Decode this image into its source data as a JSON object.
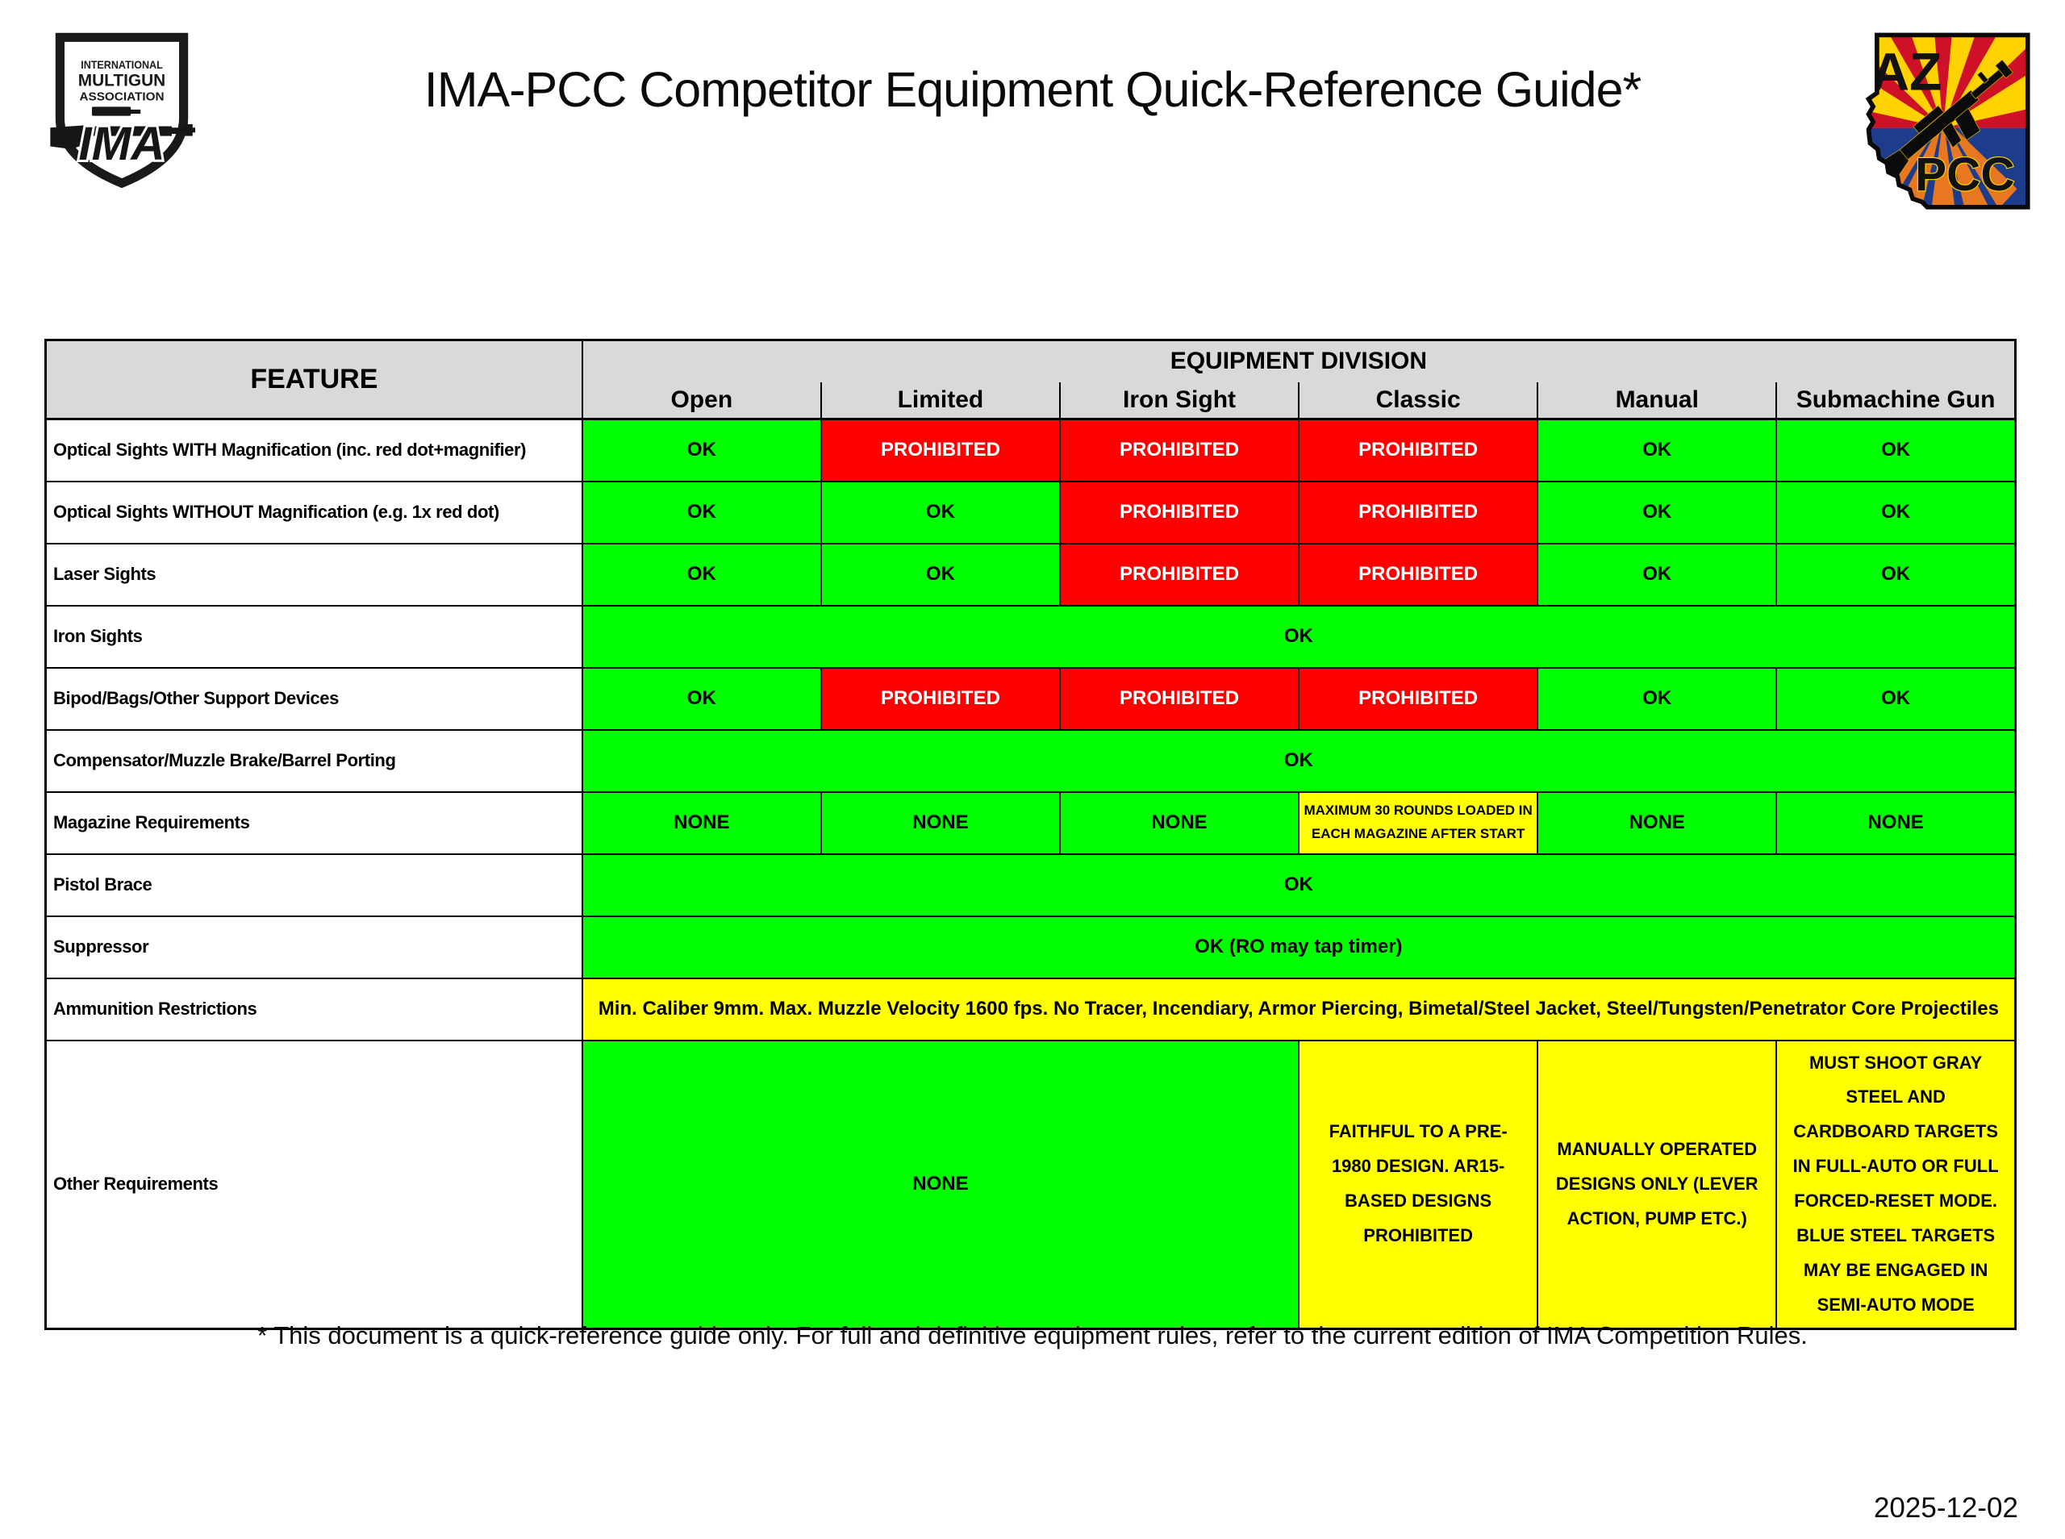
{
  "page": {
    "title": "IMA-PCC Competitor Equipment Quick-Reference Guide*",
    "footnote": "* This document is a quick-reference guide only. For full and definitive equipment rules, refer to the current edition of IMA Competition Rules.",
    "date": "2025-12-02"
  },
  "logos": {
    "ima": {
      "line1": "INTERNATIONAL",
      "line2": "MULTIGUN",
      "line3": "ASSOCIATION",
      "monogram": "IMA"
    },
    "az_pcc": {
      "state": "AZ",
      "org": "PCC"
    }
  },
  "colors": {
    "ok_green": "#00FF00",
    "prohibited_red": "#FF0000",
    "restriction_yellow": "#FFFF00",
    "header_gray": "#D9D9D9"
  },
  "table": {
    "feature_header": "FEATURE",
    "division_header": "EQUIPMENT DIVISION",
    "divisions": [
      "Open",
      "Limited",
      "Iron Sight",
      "Classic",
      "Manual",
      "Submachine Gun"
    ],
    "rows": [
      {
        "feature": "Optical Sights WITH Magnification (inc. red dot+magnifier)",
        "cells": [
          {
            "text": "OK",
            "type": "ok"
          },
          {
            "text": "PROHIBITED",
            "type": "prohibited"
          },
          {
            "text": "PROHIBITED",
            "type": "prohibited"
          },
          {
            "text": "PROHIBITED",
            "type": "prohibited"
          },
          {
            "text": "OK",
            "type": "ok"
          },
          {
            "text": "OK",
            "type": "ok"
          }
        ]
      },
      {
        "feature": "Optical Sights WITHOUT Magnification (e.g. 1x red dot)",
        "cells": [
          {
            "text": "OK",
            "type": "ok"
          },
          {
            "text": "OK",
            "type": "ok"
          },
          {
            "text": "PROHIBITED",
            "type": "prohibited"
          },
          {
            "text": "PROHIBITED",
            "type": "prohibited"
          },
          {
            "text": "OK",
            "type": "ok"
          },
          {
            "text": "OK",
            "type": "ok"
          }
        ]
      },
      {
        "feature": "Laser Sights",
        "cells": [
          {
            "text": "OK",
            "type": "ok"
          },
          {
            "text": "OK",
            "type": "ok"
          },
          {
            "text": "PROHIBITED",
            "type": "prohibited"
          },
          {
            "text": "PROHIBITED",
            "type": "prohibited"
          },
          {
            "text": "OK",
            "type": "ok"
          },
          {
            "text": "OK",
            "type": "ok"
          }
        ]
      },
      {
        "feature": "Iron Sights",
        "cells": [
          {
            "text": "OK",
            "type": "ok",
            "span": 6
          }
        ]
      },
      {
        "feature": "Bipod/Bags/Other Support Devices",
        "cells": [
          {
            "text": "OK",
            "type": "ok"
          },
          {
            "text": "PROHIBITED",
            "type": "prohibited"
          },
          {
            "text": "PROHIBITED",
            "type": "prohibited"
          },
          {
            "text": "PROHIBITED",
            "type": "prohibited"
          },
          {
            "text": "OK",
            "type": "ok"
          },
          {
            "text": "OK",
            "type": "ok"
          }
        ]
      },
      {
        "feature": "Compensator/Muzzle Brake/Barrel Porting",
        "cells": [
          {
            "text": "OK",
            "type": "ok",
            "span": 6
          }
        ]
      },
      {
        "feature": "Magazine Requirements",
        "cells": [
          {
            "text": "NONE",
            "type": "ok"
          },
          {
            "text": "NONE",
            "type": "ok"
          },
          {
            "text": "NONE",
            "type": "ok"
          },
          {
            "text": "MAXIMUM 30 ROUNDS LOADED IN EACH MAGAZINE AFTER START",
            "type": "warning",
            "small": true
          },
          {
            "text": "NONE",
            "type": "ok"
          },
          {
            "text": "NONE",
            "type": "ok"
          }
        ]
      },
      {
        "feature": "Pistol Brace",
        "cells": [
          {
            "text": "OK",
            "type": "ok",
            "span": 6
          }
        ]
      },
      {
        "feature": "Suppressor",
        "cells": [
          {
            "text": "OK (RO may tap timer)",
            "type": "ok",
            "span": 6
          }
        ]
      },
      {
        "feature": "Ammunition Restrictions",
        "cells": [
          {
            "text": "Min. Caliber 9mm. Max. Muzzle Velocity 1600 fps. No Tracer, Incendiary, Armor Piercing, Bimetal/Steel Jacket, Steel/Tungsten/Penetrator Core Projectiles",
            "type": "warning",
            "span": 6
          }
        ]
      },
      {
        "feature": "Other Requirements",
        "tall": true,
        "cells": [
          {
            "text": "NONE",
            "type": "ok",
            "span": 3
          },
          {
            "text": "FAITHFUL TO A PRE-1980 DESIGN. AR15-BASED DESIGNS PROHIBITED",
            "type": "warning"
          },
          {
            "text": "MANUALLY OPERATED DESIGNS ONLY (LEVER ACTION, PUMP ETC.)",
            "type": "warning"
          },
          {
            "text": "MUST SHOOT GRAY STEEL AND CARDBOARD TARGETS IN FULL-AUTO OR FULL FORCED-RESET MODE. BLUE STEEL TARGETS MAY BE ENGAGED IN SEMI-AUTO MODE",
            "type": "warning"
          }
        ]
      }
    ]
  }
}
